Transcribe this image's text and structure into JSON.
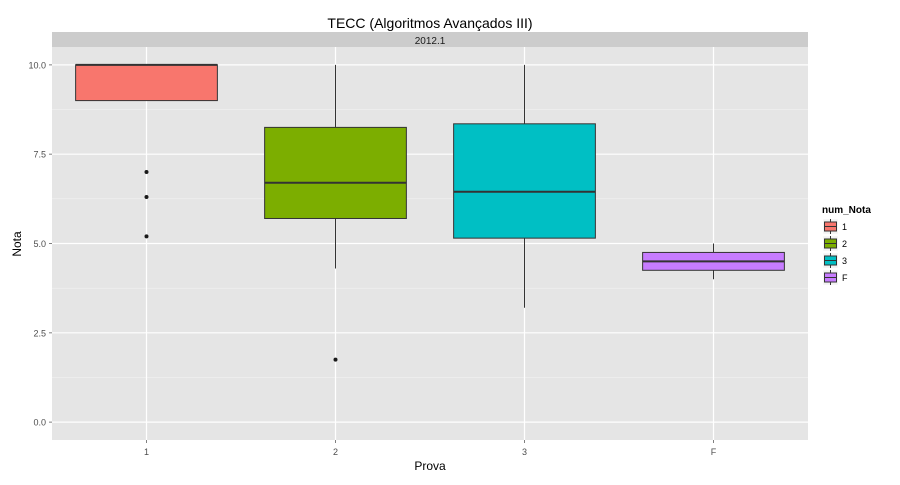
{
  "chart_data": {
    "type": "box",
    "title": "TECC (Algoritmos Avançados III)",
    "facet_label": "2012.1",
    "xlabel": "Prova",
    "ylabel": "Nota",
    "categories": [
      "1",
      "2",
      "3",
      "F"
    ],
    "ylim": [
      -0.5,
      10.5
    ],
    "yticks": [
      0.0,
      2.5,
      5.0,
      7.5,
      10.0
    ],
    "ytick_labels": [
      "0.0",
      "2.5",
      "5.0",
      "7.5",
      "10.0"
    ],
    "grid": true,
    "legend": {
      "title": "num_Nota",
      "placement": "right",
      "entries": [
        "1",
        "2",
        "3",
        "F"
      ]
    },
    "colors": {
      "panel_bg": "#e5e5e5",
      "grid": "#ffffff",
      "strip_bg": "#cccccc",
      "box_outline": "#333333",
      "fills": [
        "#f8766d",
        "#7cae00",
        "#00bfc4",
        "#c77cff"
      ]
    },
    "boxes": [
      {
        "category": "1",
        "q1": 9.0,
        "median": 10.0,
        "q3": 10.0,
        "whisker_low": 9.0,
        "whisker_high": 10.0,
        "outliers": [
          7.0,
          6.3,
          5.2
        ]
      },
      {
        "category": "2",
        "q1": 5.7,
        "median": 6.7,
        "q3": 8.25,
        "whisker_low": 4.3,
        "whisker_high": 10.0,
        "outliers": [
          1.75
        ]
      },
      {
        "category": "3",
        "q1": 5.15,
        "median": 6.45,
        "q3": 8.35,
        "whisker_low": 3.2,
        "whisker_high": 10.0,
        "outliers": []
      },
      {
        "category": "F",
        "q1": 4.25,
        "median": 4.5,
        "q3": 4.75,
        "whisker_low": 4.0,
        "whisker_high": 5.0,
        "outliers": []
      }
    ]
  }
}
